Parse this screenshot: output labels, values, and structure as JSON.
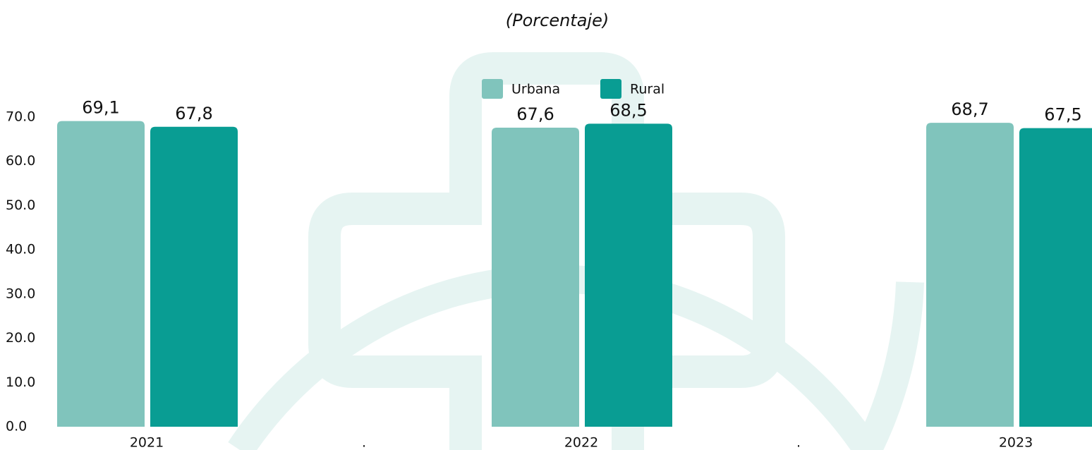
{
  "chart_data": {
    "type": "bar",
    "title": "(Porcentaje)",
    "categories": [
      "2021",
      ".",
      "2022",
      ".",
      "2023"
    ],
    "series": [
      {
        "name": "Urbana",
        "color": "#80c4bc",
        "values": [
          69.1,
          null,
          67.6,
          null,
          68.7
        ],
        "value_labels": [
          "69,1",
          null,
          "67,6",
          null,
          "68,7"
        ]
      },
      {
        "name": "Rural",
        "color": "#099d93",
        "values": [
          67.8,
          null,
          68.5,
          null,
          67.5
        ],
        "value_labels": [
          "67,8",
          null,
          "68,5",
          null,
          "67,5"
        ]
      }
    ],
    "ylim": [
      0,
      70
    ],
    "yticks": [
      {
        "value": 0,
        "label": "0.0"
      },
      {
        "value": 10,
        "label": "10.0"
      },
      {
        "value": 20,
        "label": "20.0"
      },
      {
        "value": 30,
        "label": "30.0"
      },
      {
        "value": 40,
        "label": "40.0"
      },
      {
        "value": 50,
        "label": "50.0"
      },
      {
        "value": 60,
        "label": "60.0"
      },
      {
        "value": 70,
        "label": "70.0"
      }
    ],
    "grid": false
  }
}
